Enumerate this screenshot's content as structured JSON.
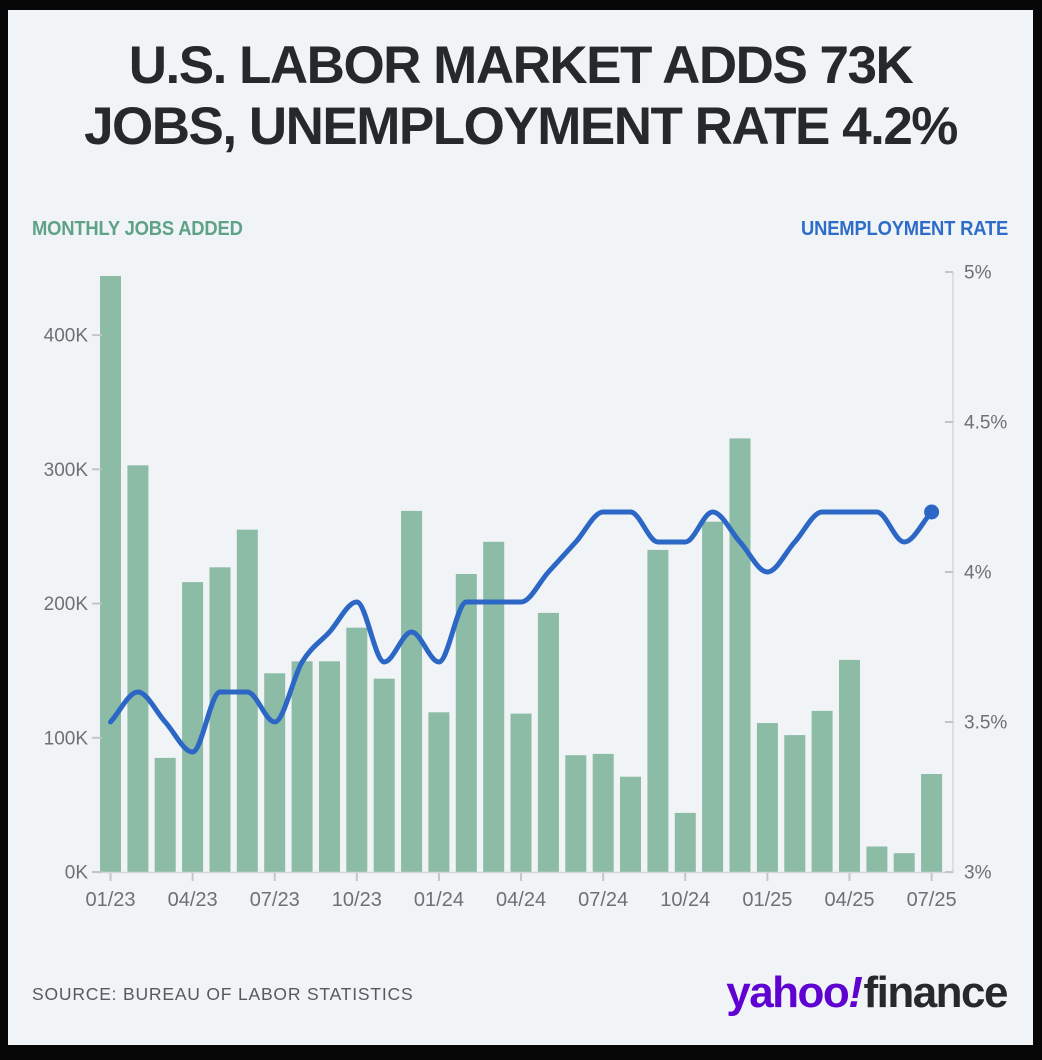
{
  "title": {
    "line1": "U.S. LABOR MARKET ADDS 73K",
    "line2": "JOBS, UNEMPLOYMENT RATE 4.2%"
  },
  "legend": {
    "left": "MONTHLY JOBS ADDED",
    "right": "UNEMPLOYMENT RATE"
  },
  "source": "SOURCE: BUREAU OF LABOR STATISTICS",
  "logo": {
    "yahoo": "yahoo",
    "bang": "!",
    "finance": "finance"
  },
  "colors": {
    "card_bg": "#f0f4f7",
    "frame": "#070707",
    "title_text": "#26282b",
    "bar_green": "#8cbba6",
    "legend_green": "#5fa287",
    "line_blue": "#2c67c5",
    "legend_blue": "#2d6cc9",
    "axis_text": "#6d7074",
    "axis_line": "#d4d8db",
    "tick_dash": "#c2c6c9",
    "source_text": "#56595d",
    "brand_purple": "#5f01d1",
    "brand_dark": "#26282c"
  },
  "chart_data": {
    "type": "bar",
    "subtype": "combo-bar-line-dual-axis",
    "x": [
      "01/23",
      "02/23",
      "03/23",
      "04/23",
      "05/23",
      "06/23",
      "07/23",
      "08/23",
      "09/23",
      "10/23",
      "11/23",
      "12/23",
      "01/24",
      "02/24",
      "03/24",
      "04/24",
      "05/24",
      "06/24",
      "07/24",
      "08/24",
      "09/24",
      "10/24",
      "11/24",
      "12/24",
      "01/25",
      "02/25",
      "03/25",
      "04/25",
      "05/25",
      "06/25",
      "07/25"
    ],
    "x_tick_labels": [
      "01/23",
      "04/23",
      "07/23",
      "10/23",
      "01/24",
      "04/24",
      "07/24",
      "10/24",
      "01/25",
      "04/25",
      "07/25"
    ],
    "series": [
      {
        "name": "Monthly jobs added",
        "type": "bar",
        "axis": "left",
        "unit": "thousands of jobs",
        "values": [
          444,
          303,
          85,
          216,
          227,
          255,
          148,
          157,
          157,
          182,
          144,
          269,
          119,
          222,
          246,
          118,
          193,
          87,
          88,
          71,
          240,
          44,
          261,
          323,
          111,
          102,
          120,
          158,
          19,
          14,
          73
        ]
      },
      {
        "name": "Unemployment rate",
        "type": "line",
        "axis": "right",
        "unit": "%",
        "values": [
          3.5,
          3.6,
          3.5,
          3.4,
          3.6,
          3.6,
          3.5,
          3.7,
          3.8,
          3.9,
          3.7,
          3.8,
          3.7,
          3.9,
          3.9,
          3.9,
          4.0,
          4.1,
          4.2,
          4.2,
          4.1,
          4.1,
          4.2,
          4.1,
          4.0,
          4.1,
          4.2,
          4.2,
          4.2,
          4.1,
          4.2
        ]
      }
    ],
    "left_axis": {
      "title": "MONTHLY JOBS ADDED",
      "tick_labels": [
        "0K",
        "100K",
        "200K",
        "300K",
        "400K"
      ],
      "tick_values": [
        0,
        100,
        200,
        300,
        400
      ],
      "range": [
        0,
        447
      ]
    },
    "right_axis": {
      "title": "UNEMPLOYMENT RATE",
      "tick_labels": [
        "3%",
        "3.5%",
        "4%",
        "4.5%",
        "5%"
      ],
      "tick_values": [
        3,
        3.5,
        4,
        4.5,
        5
      ],
      "range": [
        3,
        5
      ]
    },
    "grid": "off",
    "legend_position": "top (left label = bars, right label = line)",
    "annotations": [
      "end-point dot on unemployment line at 07/25 = 4.2%"
    ]
  }
}
